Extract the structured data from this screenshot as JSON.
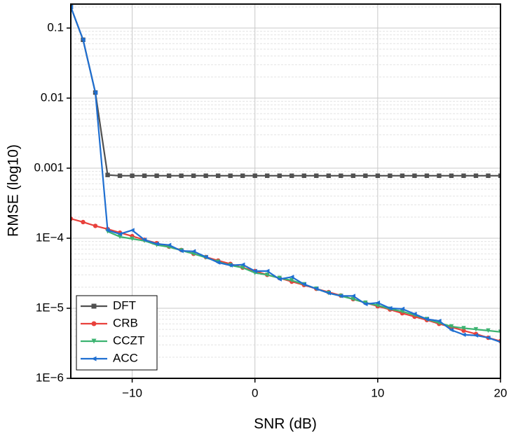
{
  "chart_data": {
    "type": "line",
    "xlabel": "SNR (dB)",
    "ylabel": "RMSE (log10)",
    "x": [
      -15,
      -14,
      -13,
      -12,
      -11,
      -10,
      -9,
      -8,
      -7,
      -6,
      -5,
      -4,
      -3,
      -2,
      -1,
      0,
      1,
      2,
      3,
      4,
      5,
      6,
      7,
      8,
      9,
      10,
      11,
      12,
      13,
      14,
      15,
      16,
      17,
      18,
      19,
      20
    ],
    "series": [
      {
        "name": "DFT",
        "color": "#505050",
        "marker": "square",
        "values": [
          0.2,
          0.068,
          0.012,
          0.0008,
          0.00078,
          0.00078,
          0.00078,
          0.00078,
          0.00078,
          0.00078,
          0.00078,
          0.00078,
          0.00078,
          0.00078,
          0.00078,
          0.00078,
          0.00078,
          0.00078,
          0.00078,
          0.00078,
          0.00078,
          0.00078,
          0.00078,
          0.00078,
          0.00078,
          0.00078,
          0.00078,
          0.00078,
          0.00078,
          0.00078,
          0.00078,
          0.00078,
          0.00078,
          0.00078,
          0.00078,
          0.00078
        ]
      },
      {
        "name": "CRB",
        "color": "#e8413c",
        "marker": "diamond",
        "values": [
          0.00019,
          0.00017,
          0.00015,
          0.000135,
          0.00012,
          0.000107,
          9.5e-05,
          8.5e-05,
          7.6e-05,
          6.8e-05,
          6e-05,
          5.4e-05,
          4.8e-05,
          4.3e-05,
          3.8e-05,
          3.4e-05,
          3e-05,
          2.7e-05,
          2.4e-05,
          2.15e-05,
          1.9e-05,
          1.7e-05,
          1.52e-05,
          1.35e-05,
          1.2e-05,
          1.07e-05,
          9.6e-06,
          8.5e-06,
          7.6e-06,
          6.8e-06,
          6e-06,
          5.4e-06,
          4.8e-06,
          4.3e-06,
          3.8e-06,
          3.4e-06
        ]
      },
      {
        "name": "CCZT",
        "color": "#3cb371",
        "marker": "down",
        "values": [
          null,
          null,
          null,
          0.000125,
          0.000105,
          9.8e-05,
          9.2e-05,
          8e-05,
          7.5e-05,
          6.7e-05,
          6e-05,
          5.3e-05,
          4.6e-05,
          4.1e-05,
          3.8e-05,
          3.2e-05,
          3e-05,
          2.7e-05,
          2.5e-05,
          2.2e-05,
          1.9e-05,
          1.65e-05,
          1.5e-05,
          1.35e-05,
          1.2e-05,
          1.1e-05,
          9.8e-06,
          9e-06,
          8e-06,
          7e-06,
          6.2e-06,
          5.5e-06,
          5.2e-06,
          5e-06,
          4.8e-06,
          4.6e-06
        ]
      },
      {
        "name": "ACC",
        "color": "#1f6fd1",
        "marker": "left",
        "values": [
          0.2,
          0.068,
          0.012,
          0.00013,
          0.000115,
          0.00013,
          9.5e-05,
          8.3e-05,
          8e-05,
          6.6e-05,
          6.5e-05,
          5.4e-05,
          4.5e-05,
          4.1e-05,
          4.2e-05,
          3.4e-05,
          3.4e-05,
          2.6e-05,
          2.8e-05,
          2.2e-05,
          1.9e-05,
          1.65e-05,
          1.5e-05,
          1.5e-05,
          1.15e-05,
          1.2e-05,
          1e-05,
          9.8e-06,
          8.3e-06,
          7e-06,
          6.6e-06,
          4.9e-06,
          4.2e-06,
          4.1e-06,
          3.8e-06,
          3.3e-06
        ]
      }
    ],
    "xlim": [
      -15,
      20
    ],
    "xticks": [
      {
        "value": -10,
        "label": "−10"
      },
      0,
      10,
      20
    ],
    "ylim": [
      1e-06,
      0.22
    ],
    "log_y": true,
    "yticks": [
      {
        "value": 1e-06,
        "label": "1E−6"
      },
      {
        "value": 1e-05,
        "label": "1E−5"
      },
      {
        "value": 0.0001,
        "label": "1E−4"
      },
      0.001,
      0.01,
      0.1
    ],
    "grid": true,
    "minor_grid": true,
    "legend": "lower left"
  }
}
